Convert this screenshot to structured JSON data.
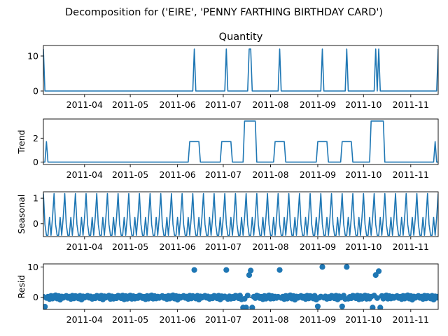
{
  "figure_title": "Decomposition for ('EIRE', 'PENNY FARTHING BIRTHDAY CARD')",
  "chart_data": [
    {
      "type": "line",
      "panel": "observed",
      "title": "Quantity",
      "ylabel": "",
      "ylim": [
        -1,
        13
      ],
      "yticks": [
        0,
        10
      ],
      "xlim": [
        "2011-03-05",
        "2011-11-19"
      ],
      "xticks": [
        "2011-04",
        "2011-05",
        "2011-06",
        "2011-07",
        "2011-08",
        "2011-09",
        "2011-10",
        "2011-11"
      ],
      "color": "#1f77b4",
      "baseline": 0,
      "events": [
        {
          "date": "2011-03-05",
          "value": 12
        },
        {
          "date": "2011-06-12",
          "value": 12
        },
        {
          "date": "2011-07-03",
          "value": 12
        },
        {
          "date": "2011-07-18",
          "value": 12
        },
        {
          "date": "2011-07-19",
          "value": 12
        },
        {
          "date": "2011-08-07",
          "value": 12
        },
        {
          "date": "2011-09-04",
          "value": 12
        },
        {
          "date": "2011-09-20",
          "value": 12
        },
        {
          "date": "2011-10-09",
          "value": 12
        },
        {
          "date": "2011-10-11",
          "value": 12
        },
        {
          "date": "2011-11-19",
          "value": 12
        }
      ]
    },
    {
      "type": "line",
      "panel": "trend",
      "title": "",
      "ylabel": "Trend",
      "ylim": [
        -0.2,
        3.6
      ],
      "yticks": [
        0,
        2
      ],
      "color": "#1f77b4",
      "plateaus": [
        {
          "start": "2011-03-07",
          "end": "2011-03-07",
          "value": 1.71
        },
        {
          "start": "2011-06-09",
          "end": "2011-06-15",
          "value": 1.71
        },
        {
          "start": "2011-06-30",
          "end": "2011-07-06",
          "value": 1.71
        },
        {
          "start": "2011-07-15",
          "end": "2011-07-22",
          "value": 3.43
        },
        {
          "start": "2011-08-04",
          "end": "2011-08-10",
          "value": 1.71
        },
        {
          "start": "2011-09-01",
          "end": "2011-09-07",
          "value": 1.71
        },
        {
          "start": "2011-09-17",
          "end": "2011-09-23",
          "value": 1.71
        },
        {
          "start": "2011-10-06",
          "end": "2011-10-14",
          "value": 3.43
        },
        {
          "start": "2011-11-17",
          "end": "2011-11-17",
          "value": 1.71
        }
      ]
    },
    {
      "type": "line",
      "panel": "seasonal",
      "title": "",
      "ylabel": "Seasonal",
      "ylim": [
        -0.5,
        1.25
      ],
      "yticks": [
        0,
        1
      ],
      "color": "#1f77b4",
      "period_days": 7,
      "weekly_pattern": [
        1.18,
        -0.02,
        -0.45,
        -0.45,
        0.25,
        -0.45,
        0.25
      ]
    },
    {
      "type": "scatter",
      "panel": "resid",
      "title": "",
      "ylabel": "Resid",
      "ylim": [
        -4,
        11
      ],
      "yticks": [
        0,
        10
      ],
      "color": "#1f77b4",
      "baseline": 0,
      "outliers": [
        {
          "date": "2011-03-06",
          "value": -3.1
        },
        {
          "date": "2011-06-12",
          "value": 9.0
        },
        {
          "date": "2011-07-03",
          "value": 9.0
        },
        {
          "date": "2011-07-18",
          "value": 7.3
        },
        {
          "date": "2011-07-19",
          "value": 8.8
        },
        {
          "date": "2011-08-07",
          "value": 9.0
        },
        {
          "date": "2011-09-04",
          "value": 10.0
        },
        {
          "date": "2011-09-20",
          "value": 10.0
        },
        {
          "date": "2011-10-09",
          "value": 7.3
        },
        {
          "date": "2011-10-11",
          "value": 8.6
        },
        {
          "date": "2011-07-14",
          "value": -3.4
        },
        {
          "date": "2011-07-16",
          "value": -3.4
        },
        {
          "date": "2011-07-20",
          "value": -3.4
        },
        {
          "date": "2011-10-07",
          "value": -3.4
        },
        {
          "date": "2011-10-12",
          "value": -3.4
        },
        {
          "date": "2011-09-01",
          "value": -3.0
        },
        {
          "date": "2011-09-17",
          "value": -3.0
        }
      ]
    }
  ]
}
